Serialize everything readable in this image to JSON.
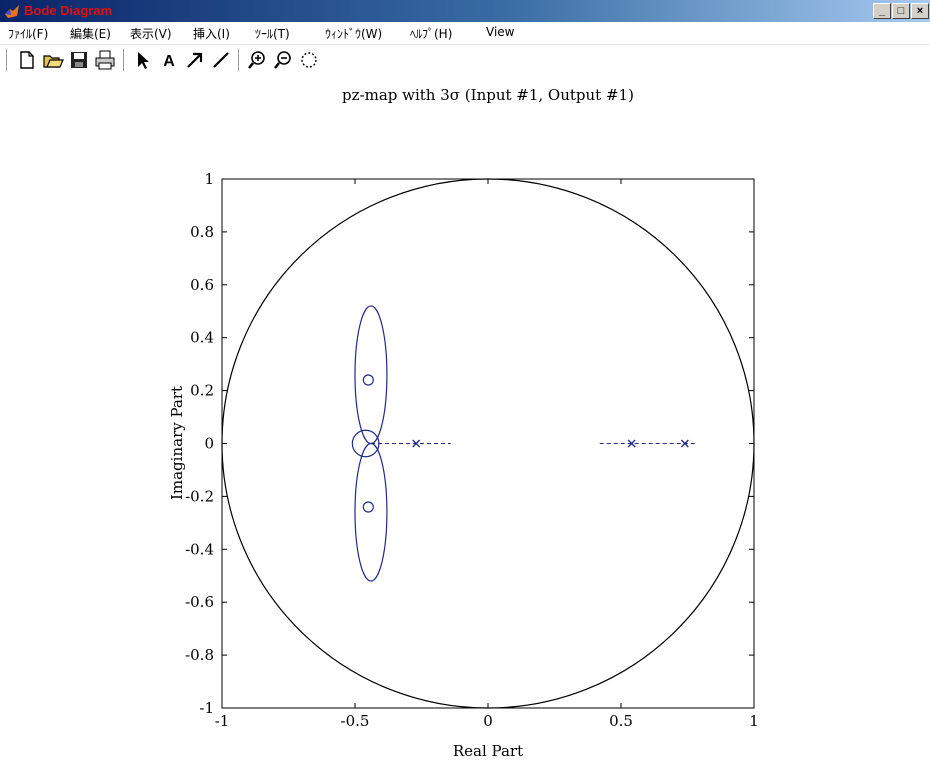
{
  "window": {
    "title": "Bode Diagram",
    "controls": [
      "_",
      "□",
      "×"
    ]
  },
  "menu": [
    {
      "label": "ﾌｧｲﾙ(F)",
      "shortcut": "F"
    },
    {
      "label": "編集(E)",
      "shortcut": "E"
    },
    {
      "label": "表示(V)",
      "shortcut": "V"
    },
    {
      "label": "挿入(I)",
      "shortcut": "I"
    },
    {
      "label": "ﾂｰﾙ(T)",
      "shortcut": "T"
    },
    {
      "label": "ｳｨﾝﾄﾞｳ(W)",
      "shortcut": "W"
    },
    {
      "label": "ﾍﾙﾌﾟ(H)",
      "shortcut": "H"
    },
    {
      "label": "View"
    }
  ],
  "toolbar": {
    "buttons": [
      "new-file-icon",
      "open-folder-icon",
      "save-disk-icon",
      "print-icon",
      "select-arrow-icon",
      "text-a-icon",
      "arrow-icon",
      "line-icon",
      "zoom-in-icon",
      "zoom-out-icon",
      "rotate-icon"
    ]
  },
  "colors": {
    "titlebar_start": "#0a246a",
    "titlebar_end": "#a6caf0",
    "title_text": "#e01010",
    "plot_series": "#1f2a8c",
    "axis": "#000000"
  },
  "chart_data": {
    "type": "scatter",
    "title": "pz-map with 3σ (Input #1, Output #1)",
    "xlabel": "Real Part",
    "ylabel": "Imaginary Part",
    "xlim": [
      -1,
      1
    ],
    "ylim": [
      -1,
      1
    ],
    "xticks": [
      -1,
      -0.5,
      0,
      0.5,
      1
    ],
    "xtick_labels": [
      "-1",
      "-0.5",
      "0",
      "0.5",
      "1"
    ],
    "yticks": [
      -1,
      -0.8,
      -0.6,
      -0.4,
      -0.2,
      0,
      0.2,
      0.4,
      0.6,
      0.8,
      1
    ],
    "ytick_labels": [
      "-1",
      "-0.8",
      "-0.6",
      "-0.4",
      "-0.2",
      "0",
      "0.2",
      "0.4",
      "0.6",
      "0.8",
      "1"
    ],
    "grid": false,
    "unit_circle": true,
    "zeros": [
      {
        "re": -0.45,
        "im": 0.24
      },
      {
        "re": -0.45,
        "im": -0.24
      }
    ],
    "poles": [
      {
        "re": -0.27,
        "im": 0
      },
      {
        "re": 0.54,
        "im": 0
      },
      {
        "re": 0.74,
        "im": 0
      }
    ],
    "uncertainty_regions": [
      {
        "shape": "ellipse",
        "center_re": -0.44,
        "center_im": 0.26,
        "half_width_re": 0.06,
        "half_height_im": 0.26
      },
      {
        "shape": "ellipse",
        "center_re": -0.44,
        "center_im": -0.26,
        "half_width_re": 0.06,
        "half_height_im": 0.26
      },
      {
        "shape": "ellipse",
        "center_re": -0.46,
        "center_im": 0.0,
        "half_width_re": 0.05,
        "half_height_im": 0.05
      },
      {
        "shape": "segment",
        "from_re": -0.44,
        "to_re": -0.14,
        "im": 0
      },
      {
        "shape": "segment",
        "from_re": 0.42,
        "to_re": 0.78,
        "im": 0
      }
    ]
  }
}
